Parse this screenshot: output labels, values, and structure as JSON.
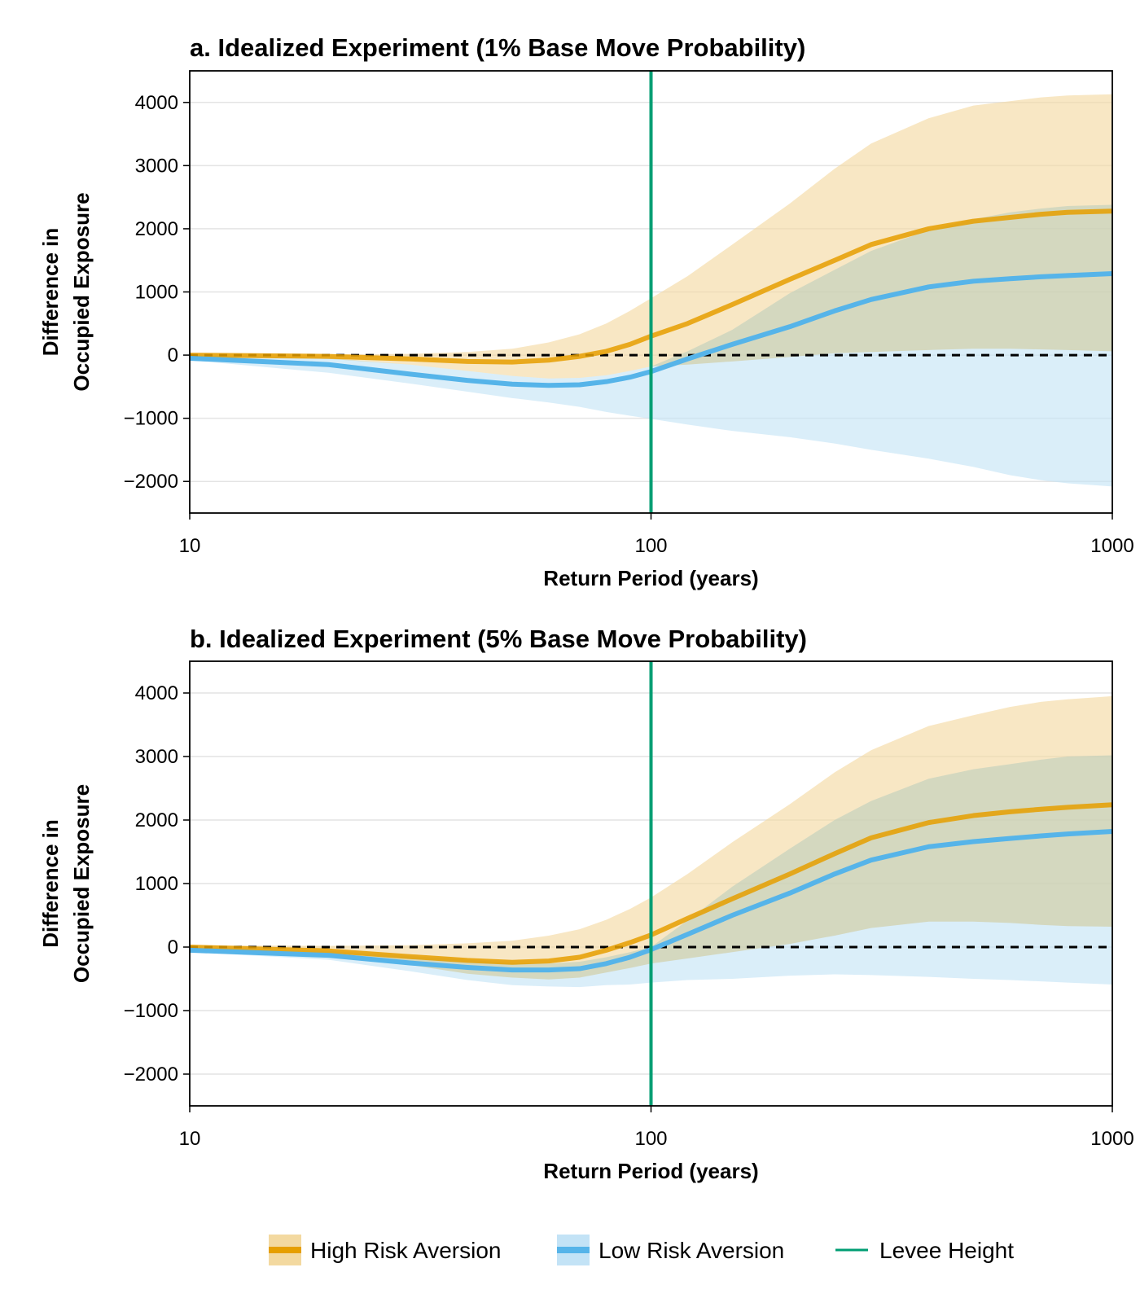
{
  "chart_data": [
    {
      "type": "area",
      "panel": "a",
      "title": "a. Idealized Experiment (1% Base Move Probability)",
      "xlabel": "Return Period (years)",
      "ylabel": [
        "Difference in",
        "Occupied Exposure"
      ],
      "x_scale": "log",
      "xlim": [
        10,
        1000
      ],
      "ylim": [
        -2500,
        4500
      ],
      "x_ticks": [
        10,
        100,
        1000
      ],
      "x_tick_labels": [
        "10",
        "100",
        "1000"
      ],
      "y_ticks": [
        -2000,
        -1000,
        0,
        1000,
        2000,
        3000,
        4000
      ],
      "y_tick_labels": [
        "−2000",
        "−1000",
        "0",
        "1000",
        "2000",
        "3000",
        "4000"
      ],
      "grid": "horizontal",
      "reference_lines": {
        "y": 0,
        "x": 100
      },
      "x": [
        10,
        20,
        30,
        40,
        50,
        60,
        70,
        80,
        90,
        100,
        120,
        150,
        200,
        250,
        300,
        400,
        500,
        600,
        700,
        800,
        1000
      ],
      "series": [
        {
          "name": "High Risk Aversion",
          "color": "#E69F00",
          "band_color": "#F3D9A0",
          "mean": [
            0,
            -20,
            -60,
            -100,
            -110,
            -80,
            -20,
            60,
            170,
            300,
            500,
            800,
            1200,
            1500,
            1750,
            2000,
            2120,
            2180,
            2230,
            2260,
            2280
          ],
          "upper": [
            20,
            10,
            20,
            50,
            100,
            200,
            330,
            500,
            700,
            900,
            1250,
            1750,
            2400,
            2950,
            3350,
            3750,
            3950,
            4020,
            4080,
            4110,
            4130
          ],
          "lower": [
            -20,
            -60,
            -150,
            -250,
            -330,
            -370,
            -360,
            -320,
            -250,
            -180,
            -150,
            -100,
            -30,
            30,
            50,
            80,
            100,
            100,
            90,
            80,
            60
          ]
        },
        {
          "name": "Low Risk Aversion",
          "color": "#56B4E9",
          "band_color": "#C3E3F6",
          "mean": [
            -50,
            -150,
            -300,
            -400,
            -460,
            -480,
            -470,
            -420,
            -350,
            -260,
            -60,
            170,
            450,
            700,
            880,
            1080,
            1170,
            1210,
            1240,
            1260,
            1290
          ],
          "upper": [
            0,
            -50,
            -150,
            -250,
            -330,
            -370,
            -360,
            -320,
            -250,
            -180,
            60,
            400,
            980,
            1350,
            1650,
            1980,
            2150,
            2260,
            2320,
            2360,
            2380
          ],
          "lower": [
            -80,
            -280,
            -450,
            -580,
            -680,
            -750,
            -820,
            -900,
            -960,
            -1010,
            -1100,
            -1200,
            -1300,
            -1400,
            -1500,
            -1640,
            -1770,
            -1900,
            -1980,
            -2030,
            -2080
          ]
        }
      ],
      "levee_height": {
        "name": "Levee Height",
        "x": 100,
        "color": "#009E73"
      }
    },
    {
      "type": "area",
      "panel": "b",
      "title": "b. Idealized Experiment (5% Base Move Probability)",
      "xlabel": "Return Period (years)",
      "ylabel": [
        "Difference in",
        "Occupied Exposure"
      ],
      "x_scale": "log",
      "xlim": [
        10,
        1000
      ],
      "ylim": [
        -2500,
        4500
      ],
      "x_ticks": [
        10,
        100,
        1000
      ],
      "x_tick_labels": [
        "10",
        "100",
        "1000"
      ],
      "y_ticks": [
        -2000,
        -1000,
        0,
        1000,
        2000,
        3000,
        4000
      ],
      "y_tick_labels": [
        "−2000",
        "−1000",
        "0",
        "1000",
        "2000",
        "3000",
        "4000"
      ],
      "grid": "horizontal",
      "reference_lines": {
        "y": 0,
        "x": 100
      },
      "x": [
        10,
        20,
        30,
        40,
        50,
        60,
        70,
        80,
        90,
        100,
        120,
        150,
        200,
        250,
        300,
        400,
        500,
        600,
        700,
        800,
        1000
      ],
      "series": [
        {
          "name": "High Risk Aversion",
          "color": "#E69F00",
          "band_color": "#F3D9A0",
          "mean": [
            0,
            -60,
            -150,
            -210,
            -240,
            -220,
            -160,
            -50,
            70,
            190,
            450,
            760,
            1150,
            1470,
            1720,
            1960,
            2070,
            2130,
            2170,
            2200,
            2240
          ],
          "upper": [
            30,
            20,
            30,
            60,
            100,
            180,
            280,
            430,
            600,
            780,
            1150,
            1650,
            2250,
            2750,
            3100,
            3480,
            3650,
            3780,
            3860,
            3900,
            3950
          ],
          "lower": [
            -20,
            -120,
            -280,
            -420,
            -480,
            -510,
            -480,
            -400,
            -330,
            -260,
            -180,
            -80,
            50,
            180,
            300,
            400,
            400,
            380,
            350,
            330,
            320
          ]
        },
        {
          "name": "Low Risk Aversion",
          "color": "#56B4E9",
          "band_color": "#C3E3F6",
          "mean": [
            -50,
            -130,
            -250,
            -320,
            -360,
            -360,
            -340,
            -260,
            -160,
            -40,
            200,
            500,
            850,
            1150,
            1370,
            1580,
            1660,
            1710,
            1750,
            1780,
            1820
          ],
          "upper": [
            0,
            -60,
            -140,
            -200,
            -250,
            -260,
            -230,
            -160,
            -80,
            0,
            420,
            950,
            1550,
            2000,
            2300,
            2650,
            2800,
            2880,
            2950,
            3000,
            3020
          ],
          "lower": [
            -80,
            -200,
            -380,
            -520,
            -600,
            -620,
            -630,
            -600,
            -590,
            -560,
            -520,
            -500,
            -450,
            -430,
            -440,
            -470,
            -500,
            -520,
            -540,
            -560,
            -590
          ]
        }
      ],
      "levee_height": {
        "name": "Levee Height",
        "x": 100,
        "color": "#009E73"
      }
    }
  ],
  "legend": {
    "placement": "bottom-center",
    "items": [
      {
        "label": "High Risk Aversion",
        "line_color": "#E69F00",
        "band_color": "#F3D9A0",
        "kind": "band"
      },
      {
        "label": "Low Risk Aversion",
        "line_color": "#56B4E9",
        "band_color": "#C3E3F6",
        "kind": "band"
      },
      {
        "label": "Levee Height",
        "line_color": "#009E73",
        "kind": "line"
      }
    ]
  }
}
